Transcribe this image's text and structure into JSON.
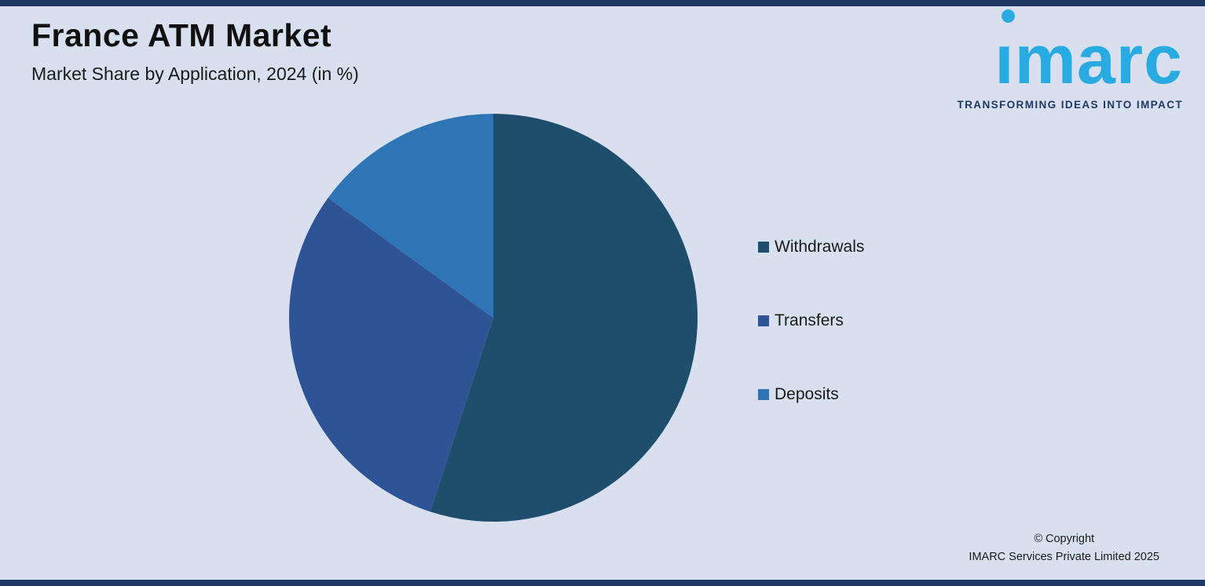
{
  "page": {
    "title": "France ATM Market",
    "subtitle": "Market Share by Application, 2024 (in %)",
    "background_color": "#d8e0ef",
    "edge_bar_color": "#1f3864"
  },
  "logo": {
    "word": "ımarc",
    "tagline": "TRANSFORMING IDEAS INTO IMPACT",
    "brand_color": "#29abe2",
    "tagline_color": "#1f3864"
  },
  "chart_data": {
    "type": "pie",
    "title": "France ATM Market — Market Share by Application, 2024 (in %)",
    "categories": [
      "Withdrawals",
      "Transfers",
      "Deposits"
    ],
    "values": [
      55,
      30,
      15
    ],
    "unit": "%",
    "colors": [
      "#1f4e6d",
      "#2f5496",
      "#2e75b6"
    ],
    "start_angle_deg": 0,
    "direction": "clockwise",
    "legend_position": "right",
    "data_labels_visible": false
  },
  "legend": {
    "items": [
      {
        "label": "Withdrawals",
        "color": "#1f4e6d"
      },
      {
        "label": "Transfers",
        "color": "#2f5496"
      },
      {
        "label": "Deposits",
        "color": "#2e75b6"
      }
    ]
  },
  "footer": {
    "line1": "© Copyright",
    "line2": "IMARC Services Private Limited 2025"
  }
}
